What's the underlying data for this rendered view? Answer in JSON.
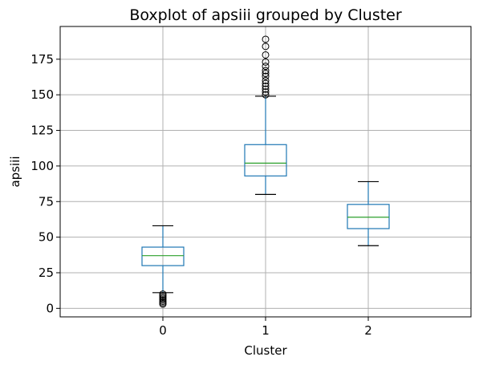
{
  "chart_data": {
    "type": "box",
    "title": "Boxplot of apsiii grouped by Cluster",
    "xlabel": "Cluster",
    "ylabel": "apsiii",
    "categories": [
      "0",
      "1",
      "2"
    ],
    "ylim": [
      -6,
      198
    ],
    "yticks": [
      0,
      25,
      50,
      75,
      100,
      125,
      150,
      175
    ],
    "ytick_labels": [
      "0",
      "25",
      "50",
      "75",
      "100",
      "125",
      "150",
      "175"
    ],
    "grid": true,
    "colors": {
      "box": "#1f77b4",
      "median": "#2ca02c",
      "whisker_cap": "#000000",
      "grid": "#b0b0b0"
    },
    "boxes": [
      {
        "category": "0",
        "whisker_low": 11,
        "q1": 30,
        "median": 37,
        "q3": 43,
        "whisker_high": 58,
        "outliers": [
          3,
          4,
          5,
          6,
          7,
          8,
          9,
          10
        ]
      },
      {
        "category": "1",
        "whisker_low": 80,
        "q1": 93,
        "median": 102,
        "q3": 115,
        "whisker_high": 149,
        "outliers": [
          150,
          152,
          154,
          156,
          158,
          160,
          163,
          165,
          167,
          170,
          173,
          178,
          184,
          189
        ]
      },
      {
        "category": "2",
        "whisker_low": 44,
        "q1": 56,
        "median": 64,
        "q3": 73,
        "whisker_high": 89,
        "outliers": []
      }
    ]
  }
}
